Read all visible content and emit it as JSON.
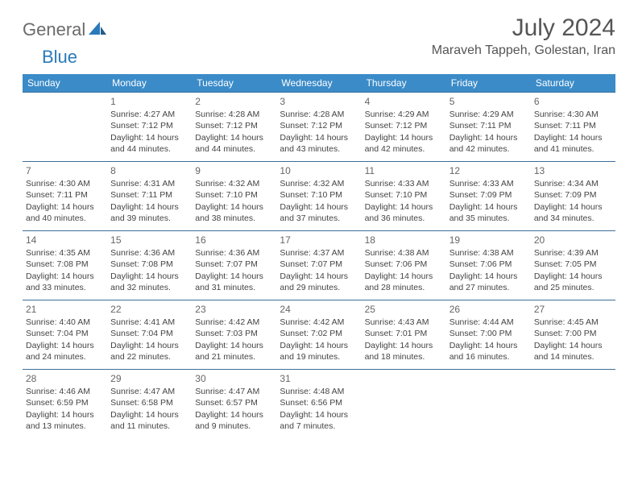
{
  "logo": {
    "part1": "General",
    "part2": "Blue"
  },
  "title": "July 2024",
  "location": "Maraveh Tappeh, Golestan, Iran",
  "colors": {
    "header_bg": "#3b8bc8",
    "header_text": "#ffffff",
    "border": "#3b6f9a",
    "text": "#444444",
    "logo_gray": "#6b6b6b",
    "logo_blue": "#2a7ab9",
    "title_color": "#555555"
  },
  "weekdays": [
    "Sunday",
    "Monday",
    "Tuesday",
    "Wednesday",
    "Thursday",
    "Friday",
    "Saturday"
  ],
  "weeks": [
    [
      null,
      {
        "n": "1",
        "l": [
          "Sunrise: 4:27 AM",
          "Sunset: 7:12 PM",
          "Daylight: 14 hours",
          "and 44 minutes."
        ]
      },
      {
        "n": "2",
        "l": [
          "Sunrise: 4:28 AM",
          "Sunset: 7:12 PM",
          "Daylight: 14 hours",
          "and 44 minutes."
        ]
      },
      {
        "n": "3",
        "l": [
          "Sunrise: 4:28 AM",
          "Sunset: 7:12 PM",
          "Daylight: 14 hours",
          "and 43 minutes."
        ]
      },
      {
        "n": "4",
        "l": [
          "Sunrise: 4:29 AM",
          "Sunset: 7:12 PM",
          "Daylight: 14 hours",
          "and 42 minutes."
        ]
      },
      {
        "n": "5",
        "l": [
          "Sunrise: 4:29 AM",
          "Sunset: 7:11 PM",
          "Daylight: 14 hours",
          "and 42 minutes."
        ]
      },
      {
        "n": "6",
        "l": [
          "Sunrise: 4:30 AM",
          "Sunset: 7:11 PM",
          "Daylight: 14 hours",
          "and 41 minutes."
        ]
      }
    ],
    [
      {
        "n": "7",
        "l": [
          "Sunrise: 4:30 AM",
          "Sunset: 7:11 PM",
          "Daylight: 14 hours",
          "and 40 minutes."
        ]
      },
      {
        "n": "8",
        "l": [
          "Sunrise: 4:31 AM",
          "Sunset: 7:11 PM",
          "Daylight: 14 hours",
          "and 39 minutes."
        ]
      },
      {
        "n": "9",
        "l": [
          "Sunrise: 4:32 AM",
          "Sunset: 7:10 PM",
          "Daylight: 14 hours",
          "and 38 minutes."
        ]
      },
      {
        "n": "10",
        "l": [
          "Sunrise: 4:32 AM",
          "Sunset: 7:10 PM",
          "Daylight: 14 hours",
          "and 37 minutes."
        ]
      },
      {
        "n": "11",
        "l": [
          "Sunrise: 4:33 AM",
          "Sunset: 7:10 PM",
          "Daylight: 14 hours",
          "and 36 minutes."
        ]
      },
      {
        "n": "12",
        "l": [
          "Sunrise: 4:33 AM",
          "Sunset: 7:09 PM",
          "Daylight: 14 hours",
          "and 35 minutes."
        ]
      },
      {
        "n": "13",
        "l": [
          "Sunrise: 4:34 AM",
          "Sunset: 7:09 PM",
          "Daylight: 14 hours",
          "and 34 minutes."
        ]
      }
    ],
    [
      {
        "n": "14",
        "l": [
          "Sunrise: 4:35 AM",
          "Sunset: 7:08 PM",
          "Daylight: 14 hours",
          "and 33 minutes."
        ]
      },
      {
        "n": "15",
        "l": [
          "Sunrise: 4:36 AM",
          "Sunset: 7:08 PM",
          "Daylight: 14 hours",
          "and 32 minutes."
        ]
      },
      {
        "n": "16",
        "l": [
          "Sunrise: 4:36 AM",
          "Sunset: 7:07 PM",
          "Daylight: 14 hours",
          "and 31 minutes."
        ]
      },
      {
        "n": "17",
        "l": [
          "Sunrise: 4:37 AM",
          "Sunset: 7:07 PM",
          "Daylight: 14 hours",
          "and 29 minutes."
        ]
      },
      {
        "n": "18",
        "l": [
          "Sunrise: 4:38 AM",
          "Sunset: 7:06 PM",
          "Daylight: 14 hours",
          "and 28 minutes."
        ]
      },
      {
        "n": "19",
        "l": [
          "Sunrise: 4:38 AM",
          "Sunset: 7:06 PM",
          "Daylight: 14 hours",
          "and 27 minutes."
        ]
      },
      {
        "n": "20",
        "l": [
          "Sunrise: 4:39 AM",
          "Sunset: 7:05 PM",
          "Daylight: 14 hours",
          "and 25 minutes."
        ]
      }
    ],
    [
      {
        "n": "21",
        "l": [
          "Sunrise: 4:40 AM",
          "Sunset: 7:04 PM",
          "Daylight: 14 hours",
          "and 24 minutes."
        ]
      },
      {
        "n": "22",
        "l": [
          "Sunrise: 4:41 AM",
          "Sunset: 7:04 PM",
          "Daylight: 14 hours",
          "and 22 minutes."
        ]
      },
      {
        "n": "23",
        "l": [
          "Sunrise: 4:42 AM",
          "Sunset: 7:03 PM",
          "Daylight: 14 hours",
          "and 21 minutes."
        ]
      },
      {
        "n": "24",
        "l": [
          "Sunrise: 4:42 AM",
          "Sunset: 7:02 PM",
          "Daylight: 14 hours",
          "and 19 minutes."
        ]
      },
      {
        "n": "25",
        "l": [
          "Sunrise: 4:43 AM",
          "Sunset: 7:01 PM",
          "Daylight: 14 hours",
          "and 18 minutes."
        ]
      },
      {
        "n": "26",
        "l": [
          "Sunrise: 4:44 AM",
          "Sunset: 7:00 PM",
          "Daylight: 14 hours",
          "and 16 minutes."
        ]
      },
      {
        "n": "27",
        "l": [
          "Sunrise: 4:45 AM",
          "Sunset: 7:00 PM",
          "Daylight: 14 hours",
          "and 14 minutes."
        ]
      }
    ],
    [
      {
        "n": "28",
        "l": [
          "Sunrise: 4:46 AM",
          "Sunset: 6:59 PM",
          "Daylight: 14 hours",
          "and 13 minutes."
        ]
      },
      {
        "n": "29",
        "l": [
          "Sunrise: 4:47 AM",
          "Sunset: 6:58 PM",
          "Daylight: 14 hours",
          "and 11 minutes."
        ]
      },
      {
        "n": "30",
        "l": [
          "Sunrise: 4:47 AM",
          "Sunset: 6:57 PM",
          "Daylight: 14 hours",
          "and 9 minutes."
        ]
      },
      {
        "n": "31",
        "l": [
          "Sunrise: 4:48 AM",
          "Sunset: 6:56 PM",
          "Daylight: 14 hours",
          "and 7 minutes."
        ]
      },
      null,
      null,
      null
    ]
  ]
}
